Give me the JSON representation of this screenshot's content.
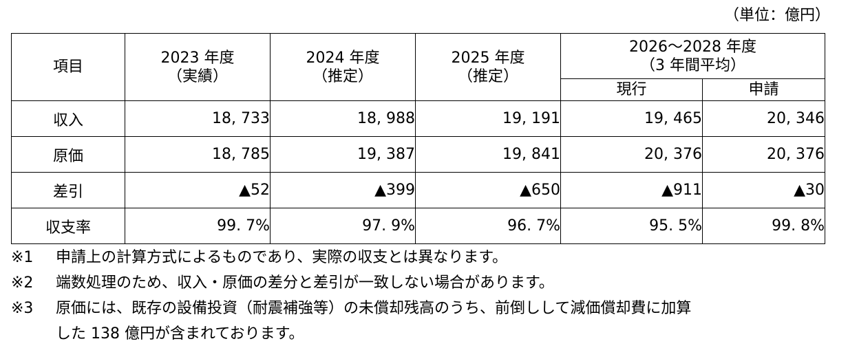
{
  "unit_label": "（単位：億円）",
  "table": {
    "header": {
      "item": "項目",
      "col2023": [
        "2023 年度",
        "（実績）"
      ],
      "col2024": [
        "2024 年度",
        "（推定）"
      ],
      "col2025": [
        "2025 年度",
        "（推定）"
      ],
      "col2026": [
        "2026～2028 年度",
        "（3 年間平均）"
      ],
      "current": "現行",
      "applied": "申請"
    },
    "rows": [
      {
        "label": "収入",
        "values": [
          "18, 733",
          "18, 988",
          "19, 191",
          "19, 465",
          "20, 346"
        ]
      },
      {
        "label": "原価",
        "values": [
          "18, 785",
          "19, 387",
          "19, 841",
          "20, 376",
          "20, 376"
        ]
      },
      {
        "label": "差引",
        "values": [
          "▲52",
          "▲399",
          "▲650",
          "▲911",
          "▲30"
        ]
      },
      {
        "label": "収支率",
        "values": [
          "99. 7%",
          "97. 9%",
          "96. 7%",
          "95. 5%",
          "99. 8%"
        ]
      }
    ]
  },
  "notes": [
    {
      "mark": "※1",
      "lines": [
        "申請上の計算方式によるものであり、実際の収支とは異なります。"
      ]
    },
    {
      "mark": "※2",
      "lines": [
        "端数処理のため、収入・原価の差分と差引が一致しない場合があります。"
      ]
    },
    {
      "mark": "※3",
      "lines": [
        "原価には、既存の設備投資（耐震補強等）の未償却残高のうち、前倒しして減価償却費に加算",
        "した 138 億円が含まれております。"
      ]
    }
  ]
}
